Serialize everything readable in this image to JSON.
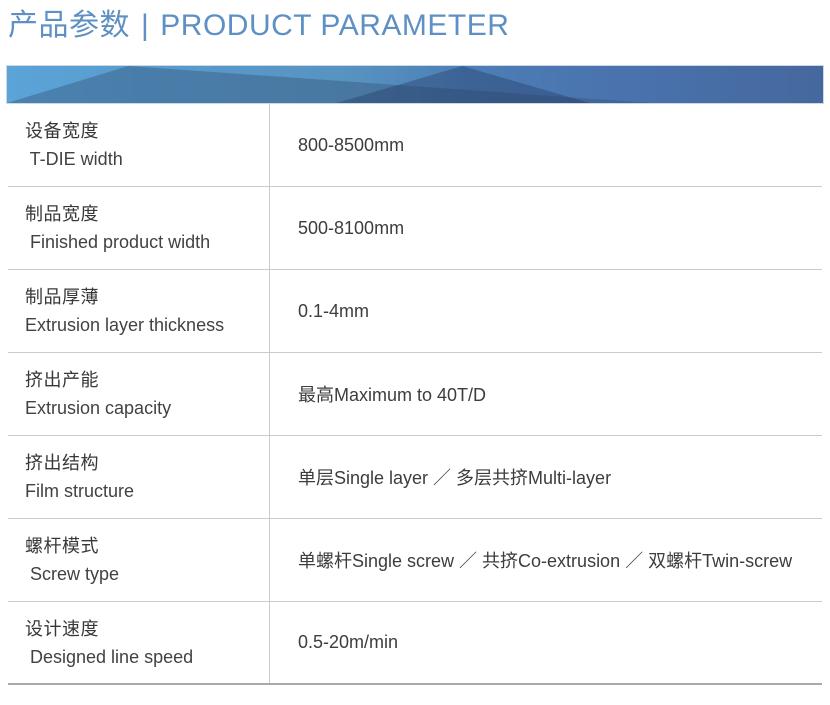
{
  "header": {
    "title_zh": "产品参数",
    "separator": "|",
    "title_en": "PRODUCT PARAMETER"
  },
  "colors": {
    "accent": "#5e90c4",
    "text": "#3d3d3d",
    "line": "#cbcbcb",
    "line-bottom": "#a9a9a9",
    "banner-left": "#5ba4d8",
    "banner-mid": "#5793c1",
    "banner-right": "#45689e"
  },
  "table": {
    "rows": [
      {
        "label_zh": "设备宽度",
        "label_en": " T-DIE width",
        "value": "800-8500mm"
      },
      {
        "label_zh": "制品宽度",
        "label_en": " Finished product width",
        "value": "500-8100mm"
      },
      {
        "label_zh": "制品厚薄",
        "label_en": "Extrusion layer thickness",
        "value": "0.1-4mm"
      },
      {
        "label_zh": "挤出产能",
        "label_en": "Extrusion capacity",
        "value": "最高Maximum to 40T/D"
      },
      {
        "label_zh": "挤出结构",
        "label_en": "Film structure",
        "value": "单层Single layer ／ 多层共挤Multi-layer"
      },
      {
        "label_zh": "螺杆模式",
        "label_en": " Screw type",
        "value": "单螺杆Single screw ／ 共挤Co-extrusion ／ 双螺杆Twin-screw"
      },
      {
        "label_zh": "设计速度",
        "label_en": " Designed line speed",
        "value": "0.5-20m/min"
      }
    ]
  }
}
